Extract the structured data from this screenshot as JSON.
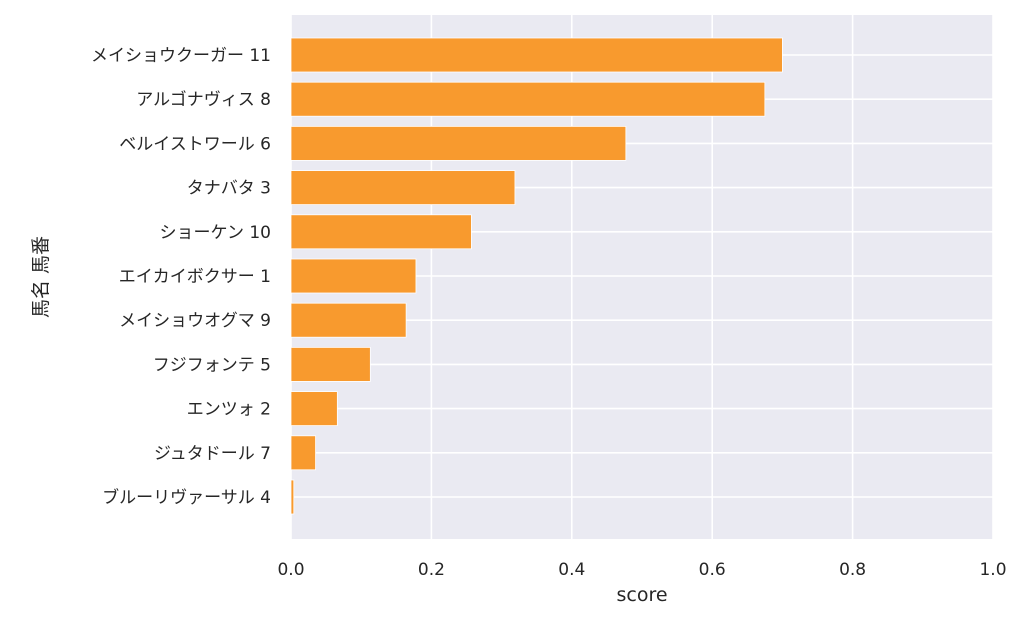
{
  "chart_data": {
    "type": "bar",
    "orientation": "horizontal",
    "categories": [
      "メイショウクーガー 11",
      "アルゴナヴィス 8",
      "ベルイストワール 6",
      "タナバタ 3",
      "ショーケン 10",
      "エイカイボクサー 1",
      "メイショウオグマ 9",
      "フジフォンテ 5",
      "エンツォ 2",
      "ジュタドール 7",
      "ブルーリヴァーサル 4"
    ],
    "values": [
      0.7,
      0.675,
      0.477,
      0.319,
      0.257,
      0.178,
      0.164,
      0.113,
      0.066,
      0.035,
      0.004
    ],
    "xlabel": "score",
    "ylabel": "馬名 馬番",
    "xlim": [
      0.0,
      1.0
    ],
    "xticks": [
      "0.0",
      "0.2",
      "0.4",
      "0.6",
      "0.8",
      "1.0"
    ],
    "grid": true,
    "colors": {
      "bar": "#f89a2e",
      "plot_background": "#eaeaf2",
      "grid": "#ffffff"
    }
  }
}
